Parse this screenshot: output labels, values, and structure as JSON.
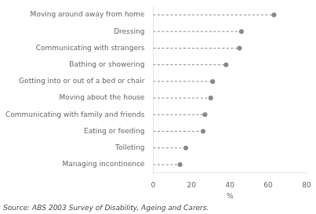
{
  "chart_data": {
    "type": "lollipop",
    "orientation": "horizontal",
    "categories": [
      "Managing incontinence",
      "Toileting",
      "Eating or feeding",
      "Communicating with family and friends",
      "Moving about the house",
      "Getting into or out of a bed or chair",
      "Bathing or showering",
      "Communicating with strangers",
      "Dressing",
      "Moving around away from home"
    ],
    "values": [
      14,
      17,
      26,
      27,
      30,
      31,
      38,
      45,
      46,
      63
    ],
    "color": "#888888",
    "line_style": "dashed",
    "xlim": [
      0,
      80
    ],
    "xticks": [
      0,
      20,
      40,
      60,
      80
    ],
    "xlabel": "%",
    "source": "Source: ABS 2003 Survey of Disability, Ageing and Carers.",
    "grid": false,
    "legend": false
  }
}
